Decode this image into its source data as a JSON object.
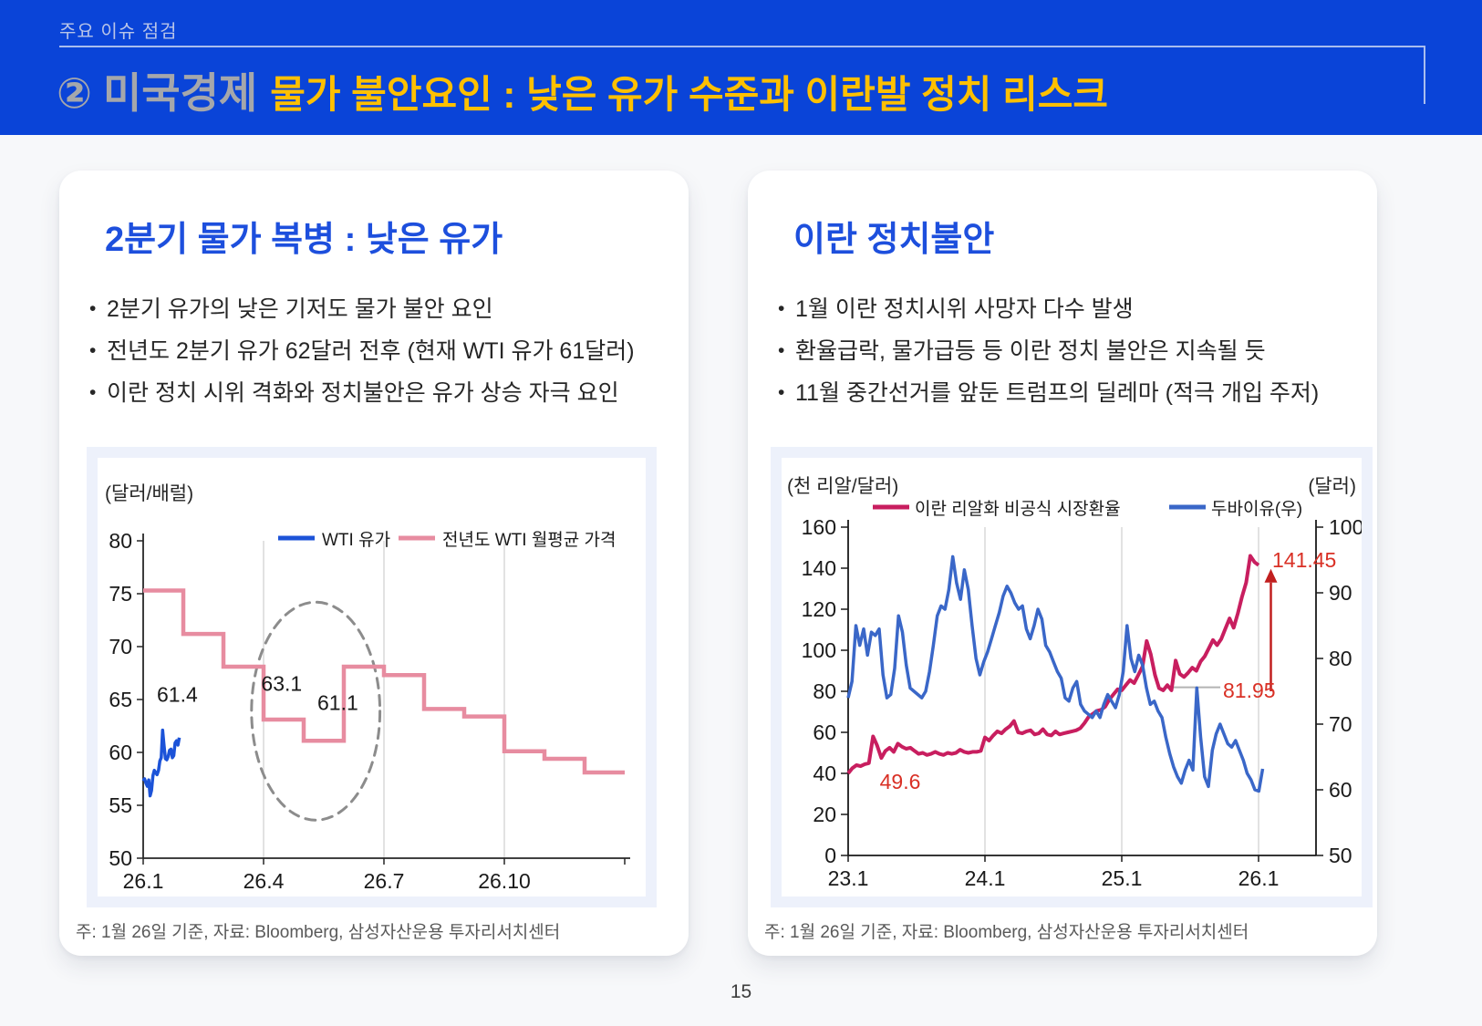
{
  "page": {
    "number": "15"
  },
  "header": {
    "eyebrow": "주요 이슈 점검",
    "badge": "②",
    "title_gray": "미국경제",
    "title_yellow": "물가 불안요인 : 낮은 유가 수준과 이란발 정치 리스크",
    "colors": {
      "banner_blue": "#0a44d8",
      "title_gray": "#a5a7ab",
      "title_yellow": "#ffc000"
    }
  },
  "left_card": {
    "title": "2분기 물가 복병 : 낮은 유가",
    "bullets": [
      "2분기 유가의 낮은 기저도 물가 불안 요인",
      "전년도 2분기 유가 62달러 전후 (현재 WTI 유가 61달러)",
      "이란 정치 시위 격화와 정치불안은 유가 상승 자극 요인"
    ],
    "footnote": "주: 1월 26일 기준,  자료: Bloomberg, 삼성자산운용 투자리서치센터"
  },
  "right_card": {
    "title": "이란 정치불안",
    "bullets": [
      "1월 이란 정치시위 사망자 다수 발생",
      "환율급락, 물가급등 등 이란 정치 불안은 지속될 듯",
      "11월 중간선거를 앞둔 트럼프의 딜레마 (적극 개입 주저)"
    ],
    "footnote": "주: 1월 26일 기준,  자료: Bloomberg, 삼성자산운용 투자리서치센터"
  },
  "chart_data": [
    {
      "id": "wti-oil-price",
      "type": "line",
      "unit_left": "(달러/배럴)",
      "ylim": [
        50,
        80
      ],
      "yticks": [
        80,
        75,
        70,
        65,
        60,
        55,
        50
      ],
      "x_total_months": 12,
      "grid_at": [
        3,
        6,
        9
      ],
      "xticks": [
        {
          "label": "26.1",
          "m": 0
        },
        {
          "label": "26.4",
          "m": 3
        },
        {
          "label": "26.7",
          "m": 6
        },
        {
          "label": "26.10",
          "m": 9
        }
      ],
      "series": [
        {
          "name": "WTI 유가",
          "color": "#1c53d8",
          "kind": "line",
          "xspan": [
            0,
            0.9
          ],
          "values": [
            57.3,
            57.5,
            57.1,
            56.8,
            57.4,
            55.9,
            56.4,
            57.8,
            58.3,
            58.1,
            57.9,
            58.3,
            59.2,
            59.5,
            62.1,
            60.7,
            59.4,
            59.3,
            59.6,
            60.2,
            60.3,
            59.5,
            59.7,
            60.9,
            61.1,
            60.7,
            61.4
          ]
        },
        {
          "name": "전년도 WTI 월평균 가격",
          "color": "#e78ca0",
          "kind": "step",
          "values": [
            75.3,
            71.2,
            68.1,
            63.1,
            61.1,
            68.1,
            67.3,
            64.1,
            63.4,
            60.1,
            59.4,
            58.1
          ]
        }
      ],
      "annotations": {
        "texts": [
          {
            "text": "61.4",
            "m": 0.85,
            "v": 64.8
          },
          {
            "text": "63.1",
            "m": 3.45,
            "v": 65.8
          },
          {
            "text": "61.1",
            "m": 4.85,
            "v": 64.0
          }
        ],
        "ellipse": {
          "m": 4.3,
          "v": 63.9,
          "rm": 1.6,
          "rv": 10.3,
          "color": "#8c8c8c"
        }
      }
    },
    {
      "id": "iran-rial-dubai-oil",
      "type": "line-dual-axis",
      "unit_left": "(천 리알/달러)",
      "unit_right": "(달러)",
      "ylim_left": [
        0,
        160
      ],
      "yticks_left": [
        160,
        140,
        120,
        100,
        80,
        60,
        40,
        20,
        0
      ],
      "ylim_right": [
        50,
        100
      ],
      "yticks_right": [
        100,
        90,
        80,
        70,
        60,
        50
      ],
      "x_total_years": 3.42,
      "grid_at": [
        1,
        2,
        3
      ],
      "xticks": [
        {
          "label": "23.1",
          "t": 0
        },
        {
          "label": "24.1",
          "t": 1
        },
        {
          "label": "25.1",
          "t": 2
        },
        {
          "label": "26.1",
          "t": 3
        }
      ],
      "series": [
        {
          "name": "이란 리알화 비공식 시장환율",
          "color": "#c81e5f",
          "axis": "left",
          "xspan": [
            0,
            3.0
          ],
          "values": [
            40,
            42.5,
            44,
            43.5,
            44.5,
            45,
            58,
            53.5,
            47.5,
            51,
            52.5,
            50.5,
            54.5,
            53,
            52,
            52.5,
            51,
            49.5,
            50,
            49,
            49.5,
            50.5,
            49.5,
            49,
            50,
            49.5,
            50,
            51.5,
            50.5,
            50,
            50.5,
            50.5,
            51,
            57.5,
            56,
            58.5,
            60.5,
            59.5,
            61.5,
            63,
            65.5,
            60,
            59.5,
            60.5,
            61,
            59,
            59.5,
            61.5,
            59,
            58.5,
            60.5,
            59,
            59.5,
            60,
            60.5,
            61,
            62,
            64.5,
            67.5,
            69,
            70.5,
            71,
            72.5,
            76,
            78.5,
            81,
            80.5,
            83,
            85.5,
            84,
            88,
            92,
            104.5,
            98,
            88,
            81.5,
            80.5,
            83,
            80.5,
            95,
            88.5,
            87,
            89,
            91.5,
            90,
            94.5,
            97,
            101,
            105,
            102.5,
            105.5,
            110.5,
            115.5,
            111,
            118,
            126,
            133,
            146,
            143,
            141.45
          ]
        },
        {
          "name": "두바이유(우)",
          "color": "#3a67c8",
          "axis": "right",
          "xspan": [
            0,
            3.03
          ],
          "values": [
            74,
            76.5,
            85,
            82,
            84.5,
            80.5,
            84,
            83.5,
            84.5,
            77.5,
            74,
            74.5,
            78.5,
            86.5,
            84,
            79,
            75.5,
            75,
            74.5,
            74,
            75,
            78,
            82,
            86.5,
            88,
            87.5,
            90.5,
            95.5,
            91.5,
            89,
            93.5,
            90.5,
            85,
            80,
            77.5,
            79.5,
            81,
            83,
            85,
            87,
            89.5,
            91,
            90,
            88.5,
            87.5,
            88,
            84.5,
            83,
            85,
            87.5,
            86,
            82,
            81,
            79.5,
            78,
            77,
            74,
            73.5,
            75.5,
            76.5,
            73,
            72,
            71.5,
            71,
            72,
            71,
            73,
            74.5,
            73.5,
            72.5,
            74.5,
            78,
            85,
            80,
            78,
            80.5,
            79,
            75.5,
            73,
            73.5,
            72,
            71,
            68,
            65.5,
            63.5,
            62,
            61,
            63,
            64.5,
            63,
            75.5,
            68,
            62,
            60.5,
            66,
            68.5,
            70,
            68.5,
            67,
            66.5,
            67.5,
            66,
            64.5,
            62.5,
            61.5,
            60,
            59.8,
            63.2
          ]
        }
      ],
      "annotations": {
        "texts": [
          {
            "text": "141.45",
            "t": 3.1,
            "v": 144,
            "color": "#d93025",
            "anchor": "start"
          },
          {
            "text": "81.95",
            "t": 2.74,
            "v": 80.5,
            "color": "#d93025",
            "anchor": "start"
          },
          {
            "text": "49.6",
            "t": 0.38,
            "v": 36,
            "color": "#d93025",
            "anchor": "middle"
          }
        ],
        "arrow": {
          "t": 3.09,
          "v_from": 80,
          "v_to": 133,
          "color": "#c11f1f"
        },
        "connector": {
          "t_from": 2.34,
          "t_to": 2.72,
          "v": 81.95,
          "color": "#b3b3b3"
        }
      }
    }
  ]
}
